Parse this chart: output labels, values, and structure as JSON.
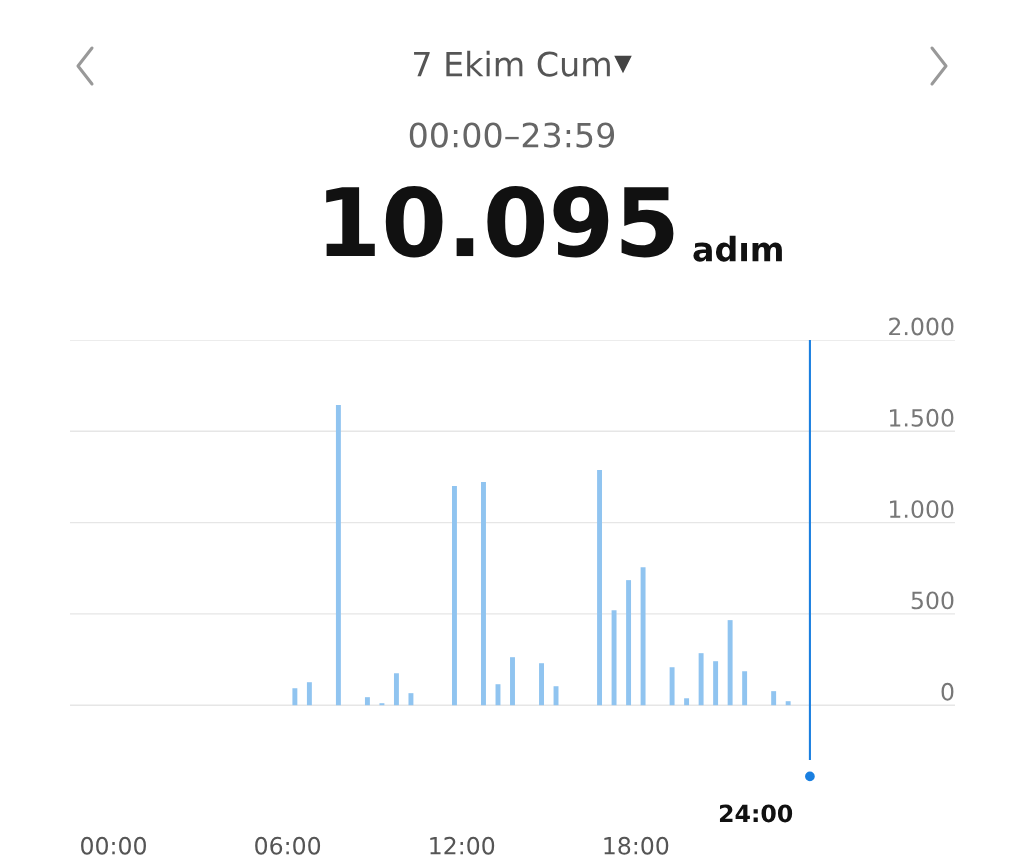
{
  "chart_data": {
    "type": "bar",
    "title": "7 Ekim Cum",
    "subtitle": "00:00–23:59",
    "annotations": [
      "10.095",
      "adım"
    ],
    "x": [
      6.25,
      6.75,
      7.75,
      8.75,
      9.25,
      9.75,
      10.25,
      11.75,
      12.75,
      13.25,
      13.75,
      14.75,
      15.25,
      16.75,
      17.25,
      17.75,
      18.25,
      19.25,
      19.75,
      20.25,
      20.75,
      21.25,
      21.75,
      22.75,
      23.25
    ],
    "values": [
      93,
      126,
      1644,
      44,
      11,
      175,
      66,
      1200,
      1222,
      115,
      263,
      230,
      104,
      1288,
      520,
      685,
      756,
      208,
      38,
      285,
      241,
      466,
      186,
      77,
      22
    ],
    "color": "#90c4f0",
    "xlim": [
      -1.5,
      29
    ],
    "xticks": [
      {
        "value": 0,
        "label": "00:00"
      },
      {
        "value": 6,
        "label": "06:00"
      },
      {
        "value": 12,
        "label": "12:00"
      },
      {
        "value": 18,
        "label": "18:00"
      }
    ],
    "ylim": [
      -300,
      2000
    ],
    "yticks": [
      0,
      500,
      {
        "value": 1000,
        "label": "1.000"
      },
      {
        "value": 1500,
        "label": "1.500"
      },
      {
        "value": 2000,
        "label": "2.000"
      }
    ],
    "grid": "y",
    "ref_lines": [
      {
        "axis": "x",
        "value": 24,
        "label": "24:00",
        "color": "#1a7fe0"
      }
    ]
  }
}
